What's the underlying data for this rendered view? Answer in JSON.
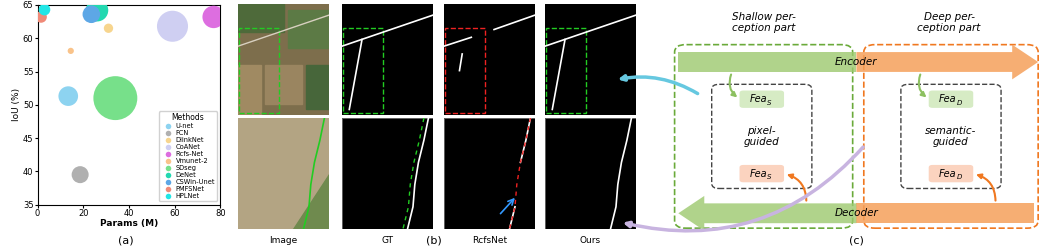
{
  "chart_data": {
    "type": "scatter",
    "label": "(a)",
    "x_label": "Params (M)",
    "y_label": "IoU (%)",
    "xlim": [
      0,
      80
    ],
    "ylim": [
      35,
      65
    ],
    "xticks": [
      0,
      20,
      40,
      60,
      80
    ],
    "yticks": [
      35,
      40,
      45,
      50,
      55,
      60,
      65
    ],
    "grid": false,
    "legend": "lower right",
    "legend_title": "Methods",
    "marker": "o",
    "series": [
      {
        "name": "U-net",
        "color": "#8dd3f0",
        "x": [
          13.4
        ],
        "values": [
          51.3
        ],
        "size": [
          200
        ]
      },
      {
        "name": "FCN",
        "color": "#b0b0b0",
        "x": [
          18.6
        ],
        "values": [
          39.5
        ],
        "size": [
          150
        ]
      },
      {
        "name": "DlinkNet",
        "color": "#f7d58e",
        "x": [
          31.0
        ],
        "values": [
          61.5
        ],
        "size": [
          45
        ]
      },
      {
        "name": "CoANet",
        "color": "#cfcff2",
        "x": [
          59.0
        ],
        "values": [
          61.8
        ],
        "size": [
          500
        ]
      },
      {
        "name": "Rcfs-Net",
        "color": "#dd6ee0",
        "x": [
          77.0
        ],
        "values": [
          63.2
        ],
        "size": [
          260
        ]
      },
      {
        "name": "Vmunet-2",
        "color": "#f9c38a",
        "x": [
          14.5
        ],
        "values": [
          58.1
        ],
        "size": [
          20
        ]
      },
      {
        "name": "SDseg",
        "color": "#77e08a",
        "x": [
          34.0
        ],
        "values": [
          51.0
        ],
        "size": [
          1000
        ]
      },
      {
        "name": "DeNet",
        "color": "#22d8b0",
        "x": [
          26.0
        ],
        "values": [
          64.2
        ],
        "size": [
          260
        ]
      },
      {
        "name": "CSWin-Unet",
        "color": "#5da7e6",
        "x": [
          23.5
        ],
        "values": [
          63.6
        ],
        "size": [
          160
        ]
      },
      {
        "name": "PMFSNet",
        "color": "#f08a78",
        "x": [
          1.5
        ],
        "values": [
          63.2
        ],
        "size": [
          70
        ]
      },
      {
        "name": "HPLNet",
        "color": "#22e6e6",
        "x": [
          3.0
        ],
        "values": [
          64.3
        ],
        "size": [
          70
        ]
      }
    ]
  },
  "panel_b": {
    "label": "(b)",
    "columns": [
      "Image",
      "GT",
      "RcfsNet",
      "Ours"
    ]
  },
  "panel_c": {
    "label": "(c)",
    "shallow": "Shallow per-\nception part",
    "deep": "Deep per-\nception part",
    "encoder": "Encoder",
    "decoder": "Decoder",
    "pixel": "pixel-\nguided",
    "semantic": "semantic-\nguided",
    "feature_shallow": {
      "base": "Fea",
      "sub": "S"
    },
    "feature_deep": {
      "base": "Fea",
      "sub": "D"
    }
  }
}
